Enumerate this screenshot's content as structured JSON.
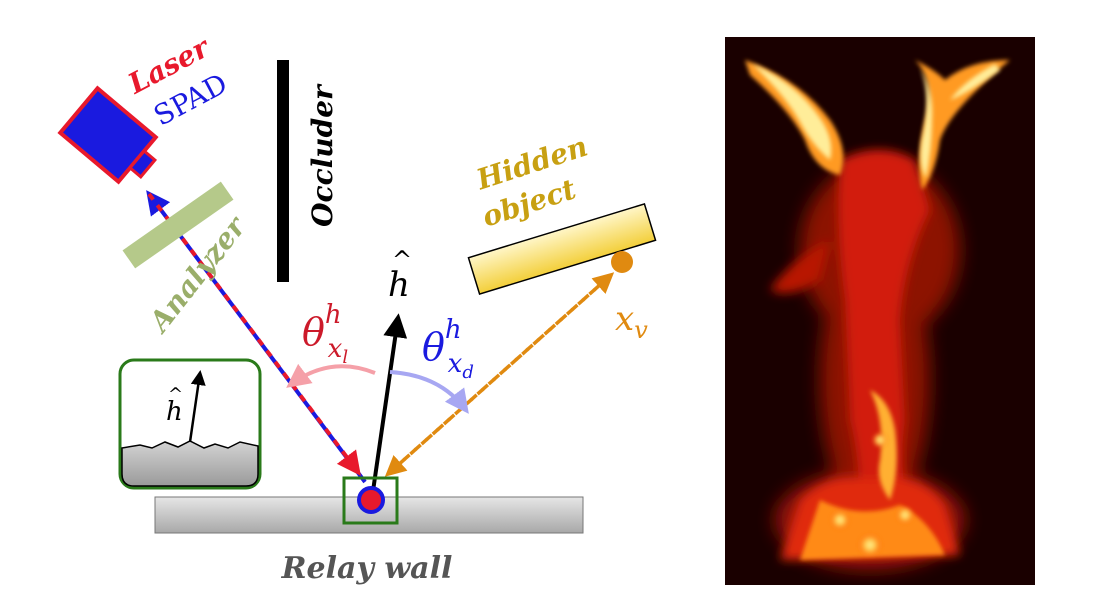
{
  "labels": {
    "laser": "Laser",
    "spad": "SPAD",
    "occluder": "Occluder",
    "analyzer": "Analyzer",
    "hidden_object_line1": "Hidden",
    "hidden_object_line2": "object",
    "relay_wall": "Relay wall"
  },
  "math": {
    "normal_symbol": "h",
    "normal_hat": "^",
    "theta": "θ",
    "superscript_h": "h",
    "subscript_x": "x",
    "subscript_l": "l",
    "subscript_d": "d",
    "x_v_base": "x",
    "x_v_sub": "v"
  },
  "colors": {
    "laser": "#e8192c",
    "spad": "#1a1adf",
    "occluder": "#000000",
    "analyzer": "#b5c98a",
    "hidden_object": "#c8a012",
    "hidden_point": "#e08a10",
    "relay_wall_text": "#555555",
    "inset_border": "#2a7a1a",
    "angle_left": "#f5a0a8",
    "angle_right": "#a7a7f2"
  }
}
